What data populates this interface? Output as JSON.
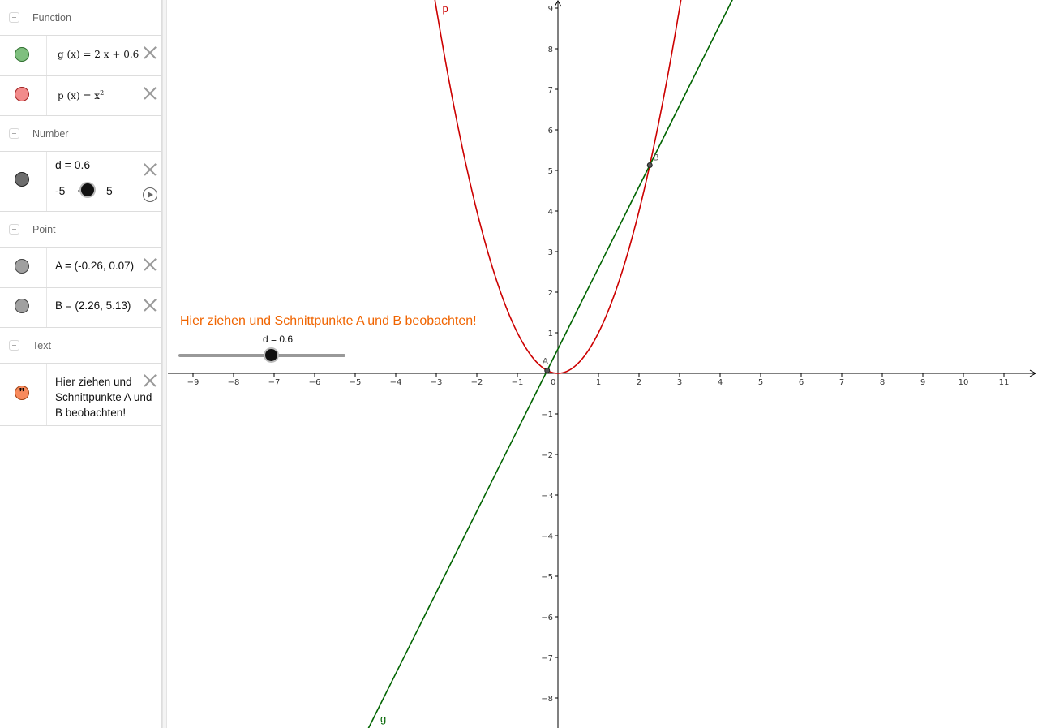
{
  "algebra": {
    "groups": {
      "function": "Function",
      "number": "Number",
      "point": "Point",
      "text": "Text"
    },
    "functions": [
      {
        "name": "g",
        "formula": "g (x)  =  2 x + 0.6",
        "color": "#7fbf7f"
      },
      {
        "name": "p",
        "formula": "p (x)  =  x",
        "exponent": "2",
        "color": "#f28b8b"
      }
    ],
    "number": {
      "label": "d = 0.6",
      "min": "-5",
      "max": "5",
      "value": 0.6,
      "color": "#6d6d6d"
    },
    "points": [
      {
        "label": "A  =  (-0.26, 0.07)",
        "color": "#a0a0a0"
      },
      {
        "label": "B  =  (2.26, 5.13)",
        "color": "#a0a0a0"
      }
    ],
    "text": {
      "content": "Hier ziehen und Schnittpunkte A und B beobachten!",
      "icon": "quote-icon",
      "color": "#f88a5c"
    }
  },
  "graphics": {
    "hint": "Hier ziehen und Schnittpunkte A und B beobachten!",
    "hint_color": "#f06400",
    "slider": {
      "label": "d = 0.6",
      "min": -5,
      "max": 5,
      "value": 0.6
    },
    "curve_labels": {
      "p": "p",
      "g": "g"
    },
    "point_labels": {
      "A": "A",
      "B": "B"
    },
    "colors": {
      "parabola": "#cc0000",
      "line": "#006400",
      "axis": "#000000"
    },
    "x_ticks": [
      "−9",
      "−8",
      "−7",
      "−6",
      "−5",
      "−4",
      "−3",
      "−2",
      "−1",
      "0",
      "1",
      "2",
      "3",
      "4",
      "5",
      "6",
      "7",
      "8",
      "9",
      "10",
      "11"
    ],
    "y_ticks_pos": [
      "1",
      "2",
      "3",
      "4",
      "5",
      "6",
      "7",
      "8",
      "9"
    ],
    "y_ticks_neg": [
      "−1",
      "−2",
      "−3",
      "−4",
      "−5",
      "−6",
      "−7",
      "−8"
    ]
  }
}
